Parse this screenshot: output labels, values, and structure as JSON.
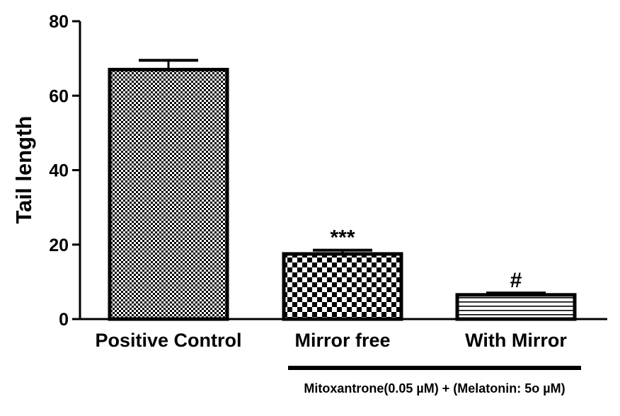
{
  "chart_data": {
    "type": "bar",
    "categories": [
      "Positive Control",
      "Mirror free",
      "With Mirror"
    ],
    "values": [
      67,
      17.5,
      6.5
    ],
    "errors": [
      2.5,
      1.0,
      0.5
    ],
    "patterns": [
      "fine-checker",
      "coarse-checker",
      "horizontal-lines"
    ],
    "annotations": [
      "",
      "***",
      "#"
    ],
    "xlabel": "",
    "ylabel": "Tail length",
    "ylim": [
      0,
      80
    ],
    "yticks": [
      0,
      20,
      40,
      60,
      80
    ],
    "grid": false,
    "group_caption": "Mitoxantrone(0.05 µM) + (Melatonin: 5o µM)"
  }
}
